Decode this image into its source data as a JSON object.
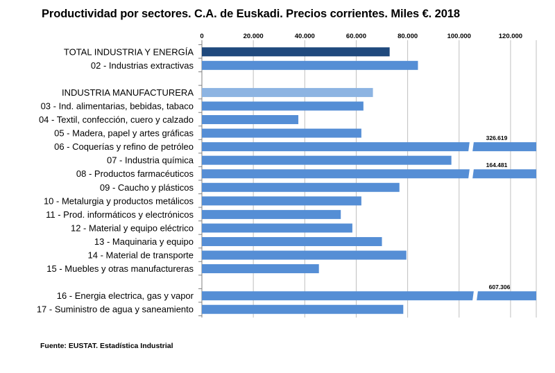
{
  "chart_data": {
    "type": "bar",
    "orientation": "horizontal",
    "title": "Productividad  por sectores. C.A. de Euskadi.  Precios corrientes.  Miles €. 2018",
    "source": "Fuente: EUSTAT. Estadística Industrial",
    "xlim": [
      0,
      130000
    ],
    "x_ticks": [
      0,
      20000,
      40000,
      60000,
      80000,
      100000,
      120000
    ],
    "x_tick_labels": [
      "0",
      "20.000",
      "40.000",
      "60.000",
      "80.000",
      "100.000",
      "120.000"
    ],
    "x_axis_position": "top",
    "grid": true,
    "legend": "none",
    "categories": [
      {
        "label": "TOTAL INDUSTRIA Y ENERGÍA",
        "value": 73000,
        "color": "#1f497d"
      },
      {
        "label": "02 - Industrias extractivas",
        "value": 84000,
        "color": "#558ed5"
      },
      {
        "label": "",
        "value": null,
        "color": ""
      },
      {
        "label": "INDUSTRIA MANUFACTURERA",
        "value": 66500,
        "color": "#8db4e2"
      },
      {
        "label": "03 - Ind. alimentarias, bebidas, tabaco",
        "value": 62800,
        "color": "#558ed5"
      },
      {
        "label": "04 - Textil, confección, cuero y calzado",
        "value": 37500,
        "color": "#558ed5"
      },
      {
        "label": "05 - Madera, papel y artes gráficas",
        "value": 62000,
        "color": "#558ed5"
      },
      {
        "label": "06 - Coquerías y refino de petróleo",
        "value": 326619,
        "data_label": "326.619",
        "broken": true,
        "color": "#558ed5"
      },
      {
        "label": "07 - Industria química",
        "value": 97000,
        "color": "#558ed5"
      },
      {
        "label": "08 - Productos farmacéuticos",
        "value": 164481,
        "data_label": "164.481",
        "broken": true,
        "color": "#558ed5"
      },
      {
        "label": "09 - Caucho y plásticos",
        "value": 76800,
        "color": "#558ed5"
      },
      {
        "label": "10 - Metalurgia y productos metálicos",
        "value": 62000,
        "color": "#558ed5"
      },
      {
        "label": "11 - Prod. informáticos y electrónicos",
        "value": 54000,
        "color": "#558ed5"
      },
      {
        "label": "12 - Material y equipo eléctrico",
        "value": 58500,
        "color": "#558ed5"
      },
      {
        "label": "13 - Maquinaria y equipo",
        "value": 70000,
        "color": "#558ed5"
      },
      {
        "label": "14 - Material de transporte",
        "value": 79500,
        "color": "#558ed5"
      },
      {
        "label": "15 - Muebles y otras manufactureras",
        "value": 45500,
        "color": "#558ed5"
      },
      {
        "label": "",
        "value": null,
        "color": ""
      },
      {
        "label": "16 - Energia electrica, gas y vapor",
        "value": 607306,
        "data_label": "607.306",
        "broken": true,
        "color": "#558ed5"
      },
      {
        "label": "17 - Suministro de agua y saneamiento",
        "value": 78300,
        "color": "#558ed5"
      }
    ]
  }
}
